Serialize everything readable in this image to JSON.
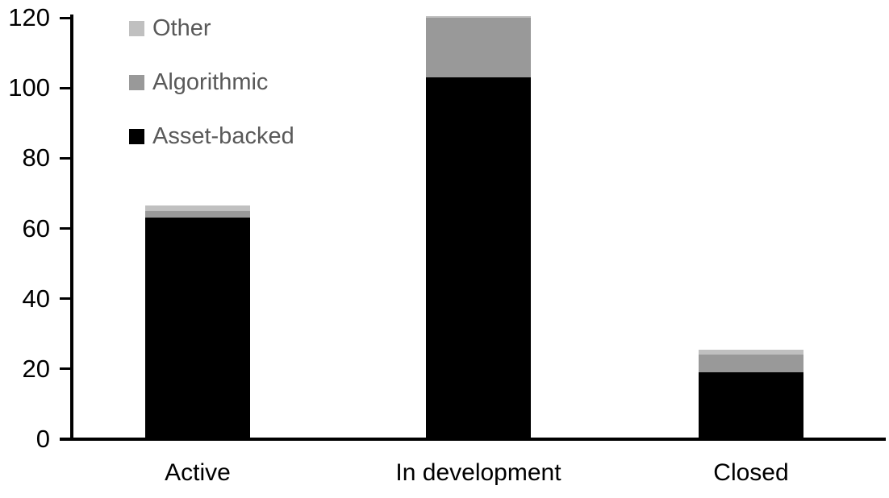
{
  "chart_data": {
    "type": "bar",
    "stacked": true,
    "title": "",
    "xlabel": "",
    "ylabel": "",
    "grid": false,
    "categories": [
      "Active",
      "In development",
      "Closed"
    ],
    "series": [
      {
        "name": "Asset-backed",
        "color": "#000000",
        "values": [
          63,
          103,
          19
        ]
      },
      {
        "name": "Algorithmic",
        "color": "#999999",
        "values": [
          2,
          17,
          5
        ]
      },
      {
        "name": "Other",
        "color": "#c0c0c0",
        "values": [
          1.5,
          0.5,
          1.5
        ]
      }
    ],
    "y_axis": {
      "min": 0,
      "max": 120,
      "tick_interval": 20,
      "tick_labels": [
        "0",
        "20",
        "40",
        "60",
        "80",
        "100",
        "120"
      ]
    },
    "legend": {
      "position": "top-left",
      "items": [
        {
          "label": "Other",
          "color": "#c0c0c0"
        },
        {
          "label": "Algorithmic",
          "color": "#999999"
        },
        {
          "label": "Asset-backed",
          "color": "#000000"
        }
      ],
      "text_color": "#595959"
    }
  }
}
